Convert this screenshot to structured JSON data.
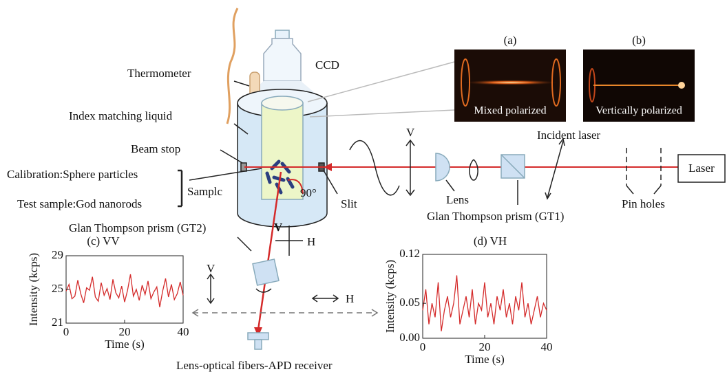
{
  "labels": {
    "thermometer": "Thermometer",
    "ccd": "CCD",
    "index_matching": "Index matching liquid",
    "beam_stop": "Beam stop",
    "calibration": "Calibration:Sphere particles",
    "test_sample": "Test sample:God nanorods",
    "sample": "Samplc",
    "angle": "90°",
    "slit": "Slit",
    "v_wave": "V",
    "lens": "Lens",
    "gt1": "Glan Thompson prism (GT1)",
    "incident": "Incident laser",
    "laser": "Laser",
    "pinholes": "Pin holes",
    "gt2": "Glan Thompson prism (GT2)",
    "v_top": "V",
    "h_top": "H",
    "v_mid": "V",
    "h_mid": "H",
    "receiver": "Lens-optical fibers-APD receiver"
  },
  "insets": [
    {
      "tag": "(a)",
      "caption": "Mixed polarized"
    },
    {
      "tag": "(b)",
      "caption": "Vertically polarized"
    }
  ],
  "plots": [
    {
      "title": "(c)  VV",
      "xlabel": "Time (s)",
      "ylabel": "Intensity (kcps)",
      "color": "#d42a2a",
      "xlim": [
        0,
        40
      ],
      "xticks": [
        0,
        20,
        40
      ],
      "ylim": [
        21,
        29
      ],
      "yticks": [
        21,
        25,
        29
      ],
      "x": [
        0,
        1,
        2,
        3,
        4,
        5,
        6,
        7,
        8,
        9,
        10,
        11,
        12,
        13,
        14,
        15,
        16,
        17,
        18,
        19,
        20,
        21,
        22,
        23,
        24,
        25,
        26,
        27,
        28,
        29,
        30,
        31,
        32,
        33,
        34,
        35,
        36,
        37,
        38,
        39,
        40
      ],
      "values": [
        24.8,
        25.6,
        23.9,
        24.2,
        26.1,
        24.5,
        23.4,
        25.2,
        24.9,
        26.5,
        24.1,
        23.6,
        25.8,
        24.3,
        25.1,
        23.8,
        26.2,
        24.6,
        24.0,
        25.4,
        23.5,
        24.9,
        26.8,
        24.2,
        25.0,
        23.7,
        25.5,
        24.4,
        26.0,
        23.9,
        24.7,
        25.3,
        22.9,
        24.8,
        26.3,
        24.1,
        25.6,
        23.8,
        24.5,
        25.9,
        24.3
      ]
    },
    {
      "title": "(d) VH",
      "xlabel": "Time (s)",
      "ylabel": "Intensity (kcps)",
      "color": "#d42a2a",
      "xlim": [
        0,
        40
      ],
      "xticks": [
        0,
        20,
        40
      ],
      "ylim": [
        0,
        0.12
      ],
      "yticks": [
        {
          "value": 0,
          "label": "0.00"
        },
        0.05,
        0.12
      ],
      "x": [
        0,
        1,
        2,
        3,
        4,
        5,
        6,
        7,
        8,
        9,
        10,
        11,
        12,
        13,
        14,
        15,
        16,
        17,
        18,
        19,
        20,
        21,
        22,
        23,
        24,
        25,
        26,
        27,
        28,
        29,
        30,
        31,
        32,
        33,
        34,
        35,
        36,
        37,
        38,
        39,
        40
      ],
      "values": [
        0.04,
        0.07,
        0.02,
        0.05,
        0.03,
        0.08,
        0.01,
        0.04,
        0.06,
        0.03,
        0.05,
        0.09,
        0.02,
        0.04,
        0.06,
        0.03,
        0.07,
        0.02,
        0.05,
        0.04,
        0.08,
        0.03,
        0.05,
        0.02,
        0.06,
        0.04,
        0.07,
        0.03,
        0.05,
        0.02,
        0.06,
        0.04,
        0.08,
        0.03,
        0.05,
        0.02,
        0.04,
        0.06,
        0.03,
        0.05,
        0.04
      ]
    }
  ]
}
